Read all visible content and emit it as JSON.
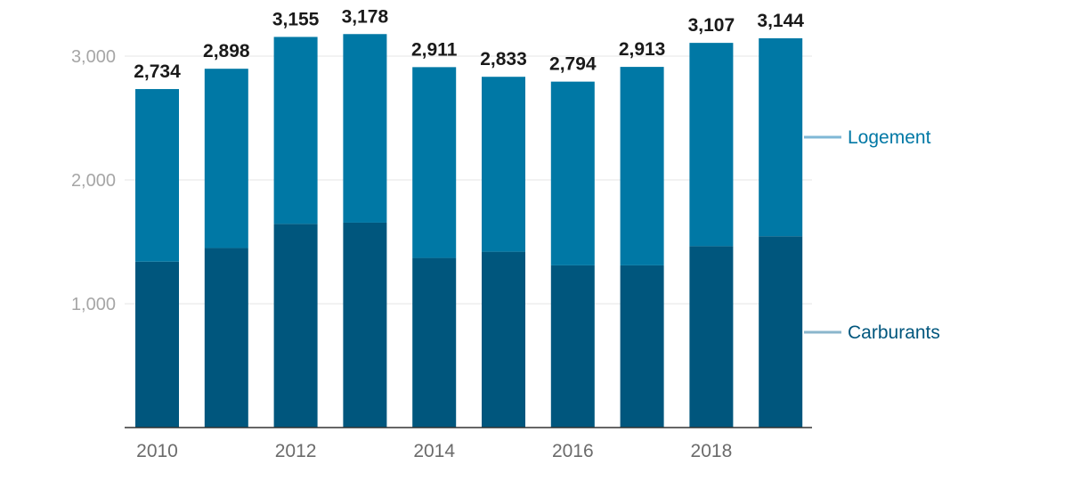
{
  "chart_data": {
    "type": "bar",
    "stacked": true,
    "categories": [
      "2010",
      "2011",
      "2012",
      "2013",
      "2014",
      "2015",
      "2016",
      "2017",
      "2018",
      "2019"
    ],
    "x_tick_labels": [
      "2010",
      "2012",
      "2014",
      "2016",
      "2018"
    ],
    "series": [
      {
        "name": "Carburants",
        "color": "#00567d",
        "values": [
          1340,
          1450,
          1645,
          1655,
          1370,
          1420,
          1310,
          1310,
          1465,
          1545
        ]
      },
      {
        "name": "Logement",
        "color": "#0078a5",
        "values": [
          1394,
          1448,
          1510,
          1523,
          1541,
          1413,
          1484,
          1603,
          1642,
          1599
        ]
      }
    ],
    "totals": [
      "2,734",
      "2,898",
      "3,155",
      "3,178",
      "2,911",
      "2,833",
      "2,794",
      "2,913",
      "3,107",
      "3,144"
    ],
    "y_ticks": [
      1000,
      2000,
      3000
    ],
    "y_tick_labels": [
      "1,000",
      "2,000",
      "3,000"
    ],
    "ylim": [
      0,
      3400
    ],
    "grid": true,
    "legend_placement": "right, inline",
    "legend_line_colors": [
      "#8ab6cc",
      "#7fb8d6"
    ],
    "title": "",
    "xlabel": "",
    "ylabel": ""
  }
}
